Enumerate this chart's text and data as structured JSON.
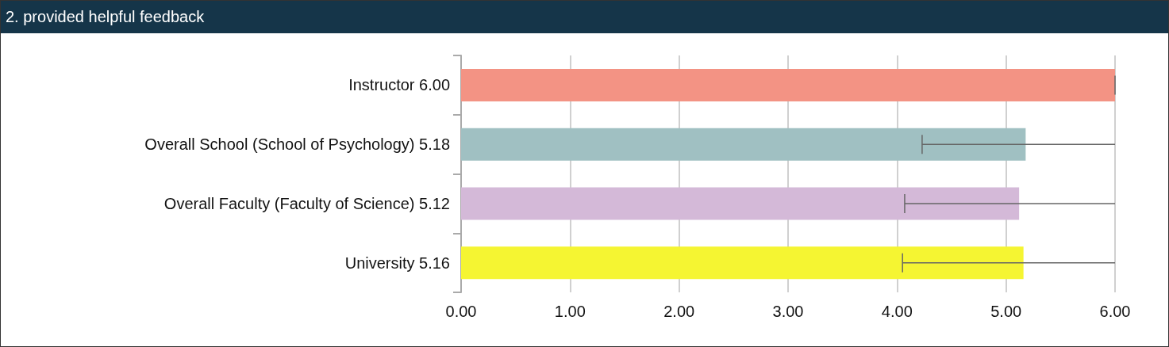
{
  "chart_data": {
    "type": "bar",
    "orientation": "horizontal",
    "title": "2. provided helpful feedback",
    "categories": [
      "Instructor 6.00",
      "Overall School (School of Psychology) 5.18",
      "Overall Faculty (Faculty of Science) 5.12",
      "University 5.16"
    ],
    "values": [
      6.0,
      5.18,
      5.12,
      5.16
    ],
    "colors": [
      "#f39384",
      "#a0c0c2",
      "#d4b9d8",
      "#f5f532"
    ],
    "errors": [
      [
        6.0,
        6.0
      ],
      [
        4.23,
        6.0
      ],
      [
        4.07,
        6.0
      ],
      [
        4.05,
        6.0
      ]
    ],
    "xlim": [
      0,
      6
    ],
    "xticks": [
      {
        "value": 0,
        "label": "0.00"
      },
      {
        "value": 1,
        "label": "1.00"
      },
      {
        "value": 2,
        "label": "2.00"
      },
      {
        "value": 3,
        "label": "3.00"
      },
      {
        "value": 4,
        "label": "4.00"
      },
      {
        "value": 5,
        "label": "5.00"
      },
      {
        "value": 6,
        "label": "6.00"
      }
    ],
    "grid": "x"
  }
}
